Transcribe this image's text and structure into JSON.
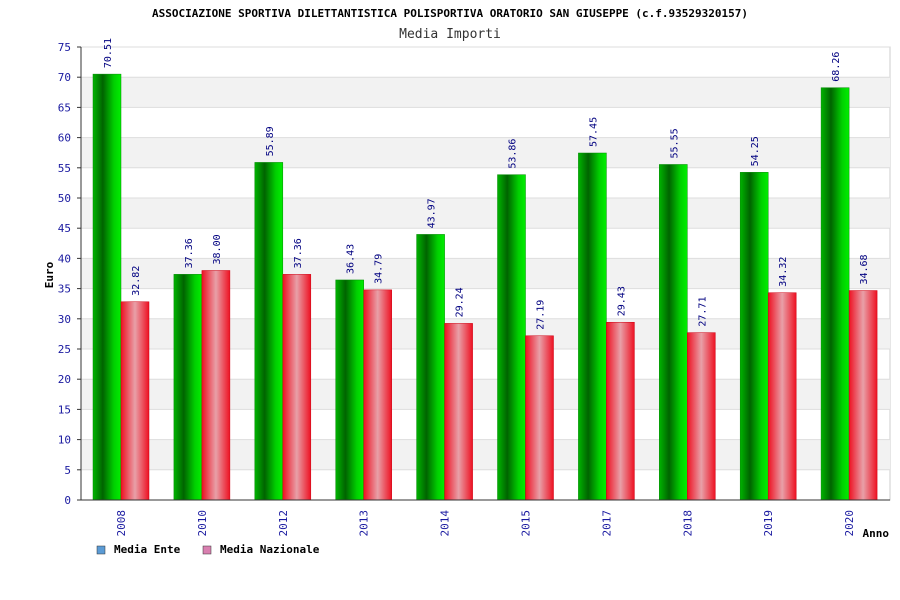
{
  "chart_data": {
    "type": "bar",
    "title": "ASSOCIAZIONE SPORTIVA DILETTANTISTICA POLISPORTIVA ORATORIO SAN GIUSEPPE (c.f.93529320157)",
    "subtitle": "Media Importi",
    "xlabel": "Anno",
    "ylabel": "Euro",
    "ylim": [
      0,
      75
    ],
    "yticks": [
      0,
      5,
      10,
      15,
      20,
      25,
      30,
      35,
      40,
      45,
      50,
      55,
      60,
      65,
      70,
      75
    ],
    "grid": true,
    "legend_position": "bottom-left",
    "categories": [
      "2008",
      "2010",
      "2012",
      "2013",
      "2014",
      "2015",
      "2017",
      "2018",
      "2019",
      "2020"
    ],
    "series": [
      {
        "name": "Media Ente",
        "legend_color": "#5b9bd5",
        "bar_color": "#00aa00",
        "values": [
          70.51,
          37.36,
          55.89,
          36.43,
          43.97,
          53.86,
          57.45,
          55.55,
          54.25,
          68.26
        ],
        "labels": [
          "70.51",
          "37.36",
          "55.89",
          "36.43",
          "43.97",
          "53.86",
          "57.45",
          "55.55",
          "54.25",
          "68.26"
        ]
      },
      {
        "name": "Media Nazionale",
        "legend_color": "#d97fb0",
        "bar_color": "#ee1122",
        "values": [
          32.82,
          38.0,
          37.36,
          34.79,
          29.24,
          27.19,
          29.43,
          27.71,
          34.32,
          34.68
        ],
        "labels": [
          "32.82",
          "38.00",
          "37.36",
          "34.79",
          "29.24",
          "27.19",
          "29.43",
          "27.71",
          "34.32",
          "34.68"
        ]
      }
    ]
  }
}
